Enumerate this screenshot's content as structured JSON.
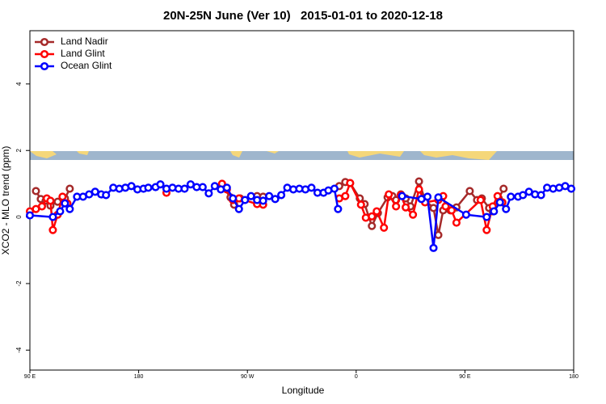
{
  "chart_data": {
    "type": "line",
    "title": "20N-25N June (Ver 10)   2015-01-01 to 2020-12-18",
    "xlabel": "Longitude",
    "ylabel": "XCO2 - MLO trend (ppm)",
    "xlim": [
      90,
      540
    ],
    "xticks": [
      {
        "value": 90,
        "label": "90 E"
      },
      {
        "value": 180,
        "label": "180"
      },
      {
        "value": 270,
        "label": "90 W"
      },
      {
        "value": 360,
        "label": "0"
      },
      {
        "value": 450,
        "label": "90 E"
      },
      {
        "value": 540,
        "label": "180"
      }
    ],
    "ylim": [
      -4.6,
      5.6
    ],
    "yticks": [
      -4,
      -2,
      0,
      2,
      4
    ],
    "legend": "top-left",
    "series": [
      {
        "name": "Land Nadir",
        "color": "#a52a2a",
        "x": [
          95,
          99,
          103,
          107,
          113,
          119,
          123,
          249,
          256,
          259,
          264,
          278,
          283,
          346,
          351,
          355,
          363,
          367,
          373,
          378,
          386,
          390,
          393,
          397,
          401,
          405,
          412,
          417,
          424,
          428,
          432,
          438,
          443,
          454,
          460,
          464,
          470,
          473,
          478,
          482
        ],
        "values": [
          0.78,
          0.54,
          0.49,
          0.34,
          0.46,
          0.56,
          0.85,
          0.95,
          0.59,
          0.37,
          0.56,
          0.63,
          0.61,
          0.93,
          1.05,
          1.02,
          0.56,
          0.39,
          -0.27,
          0.12,
          0.59,
          0.63,
          0.51,
          0.68,
          0.56,
          0.32,
          1.07,
          0.51,
          0.27,
          -0.54,
          0.2,
          0.2,
          0.29,
          0.78,
          0.51,
          0.56,
          0.27,
          0.17,
          0.56,
          0.85
        ]
      },
      {
        "name": "Land Glint",
        "color": "#ff0000",
        "x": [
          90,
          95,
          100,
          104,
          107,
          109,
          113,
          117,
          121,
          203,
          249,
          253,
          258,
          263,
          278,
          283,
          346,
          351,
          355,
          364,
          368,
          373,
          377,
          383,
          387,
          393,
          397,
          401,
          407,
          412,
          417,
          428,
          432,
          434,
          439,
          443,
          463,
          468,
          473,
          477,
          481
        ],
        "values": [
          0.17,
          0.24,
          0.32,
          0.56,
          0.49,
          -0.39,
          0.07,
          0.61,
          0.41,
          0.73,
          1.0,
          0.83,
          0.51,
          0.56,
          0.39,
          0.37,
          0.56,
          0.63,
          1.02,
          0.37,
          -0.02,
          0.02,
          0.17,
          -0.32,
          0.68,
          0.32,
          0.66,
          0.29,
          0.07,
          0.83,
          0.44,
          0.51,
          0.63,
          0.32,
          0.2,
          -0.17,
          0.51,
          -0.39,
          0.32,
          0.63,
          0.44
        ]
      },
      {
        "name": "Ocean Glint",
        "color": "#0000ff",
        "x": [
          90,
          109,
          115,
          119,
          123,
          129,
          134,
          139,
          144,
          149,
          153,
          159,
          164,
          169,
          174,
          179,
          184,
          188,
          194,
          198,
          203,
          208,
          213,
          218,
          223,
          228,
          233,
          238,
          243,
          248,
          253,
          258,
          263,
          268,
          273,
          278,
          283,
          288,
          293,
          298,
          303,
          308,
          313,
          318,
          323,
          328,
          333,
          337,
          342,
          345,
          398,
          414,
          419,
          424,
          428,
          451,
          468,
          474,
          479,
          484,
          488,
          494,
          498,
          503,
          508,
          513,
          518,
          523,
          528,
          533,
          538
        ],
        "values": [
          0.05,
          0.0,
          0.17,
          0.41,
          0.24,
          0.61,
          0.61,
          0.68,
          0.76,
          0.68,
          0.66,
          0.88,
          0.85,
          0.88,
          0.93,
          0.83,
          0.85,
          0.88,
          0.9,
          0.98,
          0.85,
          0.88,
          0.85,
          0.85,
          0.98,
          0.9,
          0.9,
          0.71,
          0.93,
          0.83,
          0.88,
          0.56,
          0.24,
          0.51,
          0.63,
          0.51,
          0.49,
          0.63,
          0.54,
          0.66,
          0.88,
          0.83,
          0.85,
          0.83,
          0.88,
          0.73,
          0.73,
          0.8,
          0.85,
          0.24,
          0.63,
          0.54,
          0.61,
          -0.93,
          0.59,
          0.07,
          0.0,
          0.17,
          0.44,
          0.24,
          0.61,
          0.61,
          0.66,
          0.76,
          0.68,
          0.66,
          0.88,
          0.85,
          0.88,
          0.93,
          0.85
        ]
      }
    ]
  }
}
